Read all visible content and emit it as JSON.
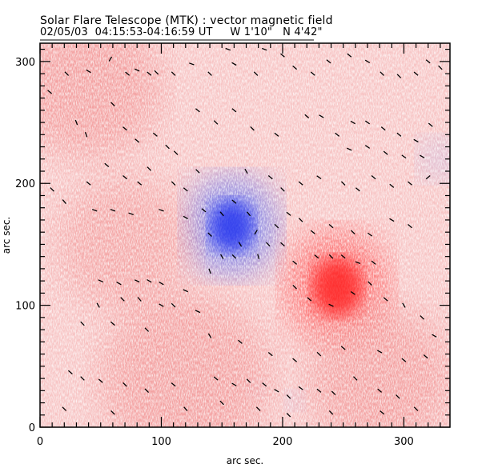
{
  "header": {
    "title": "Solar Flare Telescope (MTK) : vector magnetic field",
    "subtitle": "02/05/03  04:15:53-04:16:59 UT     W 1'10\"   N 4'42\""
  },
  "chart_data": {
    "type": "heatmap",
    "title": "Solar Flare Telescope (MTK) : vector magnetic field",
    "subtitle": "02/05/03  04:15:53-04:16:59 UT     W 1'10\"   N 4'42\"",
    "date": "02/05/03",
    "time_range": "04:15:53-04:16:59 UT",
    "position": "W 1'10\"   N 4'42\"",
    "xlabel": "arc sec.",
    "ylabel": "arc sec.",
    "xlim": [
      0,
      338
    ],
    "ylim": [
      0,
      315
    ],
    "x_ticks": [
      0,
      100,
      200,
      300
    ],
    "y_ticks": [
      0,
      100,
      200,
      300
    ],
    "x_tick_labels": [
      "0",
      "100",
      "200",
      "300"
    ],
    "y_tick_labels": [
      "0",
      "100",
      "200",
      "300"
    ],
    "minor_tick_step": 10,
    "grid": false,
    "colors": {
      "positive": "#ff2020",
      "negative": "#2030ee",
      "background_positive": "#f4a0a0",
      "vectors": "#000000",
      "axes": "#000000"
    },
    "longitudinal_field": {
      "description": "red = positive polarity, blue = negative polarity",
      "features": [
        {
          "name": "negative-sunspot",
          "polarity": "negative",
          "x": 158,
          "y": 165,
          "radius": 30,
          "strength": 1.0
        },
        {
          "name": "positive-sunspot",
          "polarity": "positive",
          "x": 245,
          "y": 115,
          "radius": 34,
          "strength": 1.0
        },
        {
          "name": "negative-pore-1",
          "polarity": "negative",
          "x": 210,
          "y": 22,
          "radius": 8,
          "strength": 0.35
        },
        {
          "name": "negative-pore-2",
          "polarity": "negative",
          "x": 178,
          "y": 32,
          "radius": 7,
          "strength": 0.25
        },
        {
          "name": "negative-plage-east",
          "polarity": "negative",
          "x": 330,
          "y": 220,
          "radius": 18,
          "strength": 0.2
        },
        {
          "name": "positive-plage-nw",
          "polarity": "positive",
          "x": 40,
          "y": 280,
          "radius": 60,
          "strength": 0.3
        },
        {
          "name": "positive-plage-sw",
          "polarity": "positive",
          "x": 120,
          "y": 40,
          "radius": 70,
          "strength": 0.3
        },
        {
          "name": "positive-plage-w",
          "polarity": "positive",
          "x": 70,
          "y": 150,
          "radius": 55,
          "strength": 0.25
        },
        {
          "name": "positive-plage-se",
          "polarity": "positive",
          "x": 280,
          "y": 40,
          "radius": 60,
          "strength": 0.3
        }
      ]
    },
    "transverse_vectors": {
      "description": "short line segments, angle in degrees from +x axis (counter-clockwise)",
      "items": [
        {
          "x": 8,
          "y": 275,
          "angle": -40
        },
        {
          "x": 22,
          "y": 290,
          "angle": -45
        },
        {
          "x": 40,
          "y": 292,
          "angle": -30
        },
        {
          "x": 58,
          "y": 302,
          "angle": 60
        },
        {
          "x": 72,
          "y": 290,
          "angle": -40
        },
        {
          "x": 80,
          "y": 293,
          "angle": -25
        },
        {
          "x": 90,
          "y": 290,
          "angle": -40
        },
        {
          "x": 96,
          "y": 291,
          "angle": -45
        },
        {
          "x": 110,
          "y": 290,
          "angle": -45
        },
        {
          "x": 125,
          "y": 298,
          "angle": -20
        },
        {
          "x": 140,
          "y": 290,
          "angle": -45
        },
        {
          "x": 160,
          "y": 298,
          "angle": -30
        },
        {
          "x": 155,
          "y": 310,
          "angle": -20
        },
        {
          "x": 178,
          "y": 290,
          "angle": -45
        },
        {
          "x": 185,
          "y": 310,
          "angle": -20
        },
        {
          "x": 200,
          "y": 305,
          "angle": -40
        },
        {
          "x": 210,
          "y": 295,
          "angle": -40
        },
        {
          "x": 225,
          "y": 290,
          "angle": -40
        },
        {
          "x": 238,
          "y": 300,
          "angle": -40
        },
        {
          "x": 255,
          "y": 305,
          "angle": -40
        },
        {
          "x": 270,
          "y": 300,
          "angle": -30
        },
        {
          "x": 282,
          "y": 290,
          "angle": -45
        },
        {
          "x": 296,
          "y": 288,
          "angle": -45
        },
        {
          "x": 310,
          "y": 290,
          "angle": -40
        },
        {
          "x": 320,
          "y": 300,
          "angle": -40
        },
        {
          "x": 330,
          "y": 295,
          "angle": -45
        },
        {
          "x": 30,
          "y": 250,
          "angle": -70
        },
        {
          "x": 38,
          "y": 240,
          "angle": -70
        },
        {
          "x": 60,
          "y": 265,
          "angle": -45
        },
        {
          "x": 70,
          "y": 245,
          "angle": -40
        },
        {
          "x": 80,
          "y": 235,
          "angle": -40
        },
        {
          "x": 95,
          "y": 240,
          "angle": -40
        },
        {
          "x": 105,
          "y": 230,
          "angle": -45
        },
        {
          "x": 112,
          "y": 225,
          "angle": -45
        },
        {
          "x": 130,
          "y": 260,
          "angle": -40
        },
        {
          "x": 145,
          "y": 250,
          "angle": -45
        },
        {
          "x": 160,
          "y": 260,
          "angle": -40
        },
        {
          "x": 175,
          "y": 245,
          "angle": -45
        },
        {
          "x": 195,
          "y": 240,
          "angle": -40
        },
        {
          "x": 220,
          "y": 255,
          "angle": -40
        },
        {
          "x": 232,
          "y": 255,
          "angle": -30
        },
        {
          "x": 245,
          "y": 240,
          "angle": -40
        },
        {
          "x": 258,
          "y": 250,
          "angle": -30
        },
        {
          "x": 270,
          "y": 250,
          "angle": -35
        },
        {
          "x": 283,
          "y": 245,
          "angle": -40
        },
        {
          "x": 296,
          "y": 240,
          "angle": -40
        },
        {
          "x": 310,
          "y": 235,
          "angle": -30
        },
        {
          "x": 322,
          "y": 248,
          "angle": -40
        },
        {
          "x": 300,
          "y": 222,
          "angle": -35
        },
        {
          "x": 315,
          "y": 222,
          "angle": -30
        },
        {
          "x": 285,
          "y": 225,
          "angle": -40
        },
        {
          "x": 270,
          "y": 230,
          "angle": -35
        },
        {
          "x": 255,
          "y": 228,
          "angle": -25
        },
        {
          "x": 10,
          "y": 195,
          "angle": -45
        },
        {
          "x": 20,
          "y": 185,
          "angle": -50
        },
        {
          "x": 40,
          "y": 200,
          "angle": -40
        },
        {
          "x": 55,
          "y": 215,
          "angle": -40
        },
        {
          "x": 70,
          "y": 205,
          "angle": -40
        },
        {
          "x": 82,
          "y": 200,
          "angle": -40
        },
        {
          "x": 90,
          "y": 212,
          "angle": -45
        },
        {
          "x": 110,
          "y": 200,
          "angle": -45
        },
        {
          "x": 120,
          "y": 195,
          "angle": -40
        },
        {
          "x": 130,
          "y": 210,
          "angle": -45
        },
        {
          "x": 170,
          "y": 210,
          "angle": -60
        },
        {
          "x": 190,
          "y": 205,
          "angle": -40
        },
        {
          "x": 200,
          "y": 195,
          "angle": -45
        },
        {
          "x": 215,
          "y": 200,
          "angle": -40
        },
        {
          "x": 230,
          "y": 205,
          "angle": -35
        },
        {
          "x": 250,
          "y": 200,
          "angle": -45
        },
        {
          "x": 262,
          "y": 195,
          "angle": -40
        },
        {
          "x": 275,
          "y": 205,
          "angle": -40
        },
        {
          "x": 290,
          "y": 198,
          "angle": -40
        },
        {
          "x": 305,
          "y": 200,
          "angle": -40
        },
        {
          "x": 320,
          "y": 205,
          "angle": 40
        },
        {
          "x": 45,
          "y": 178,
          "angle": -20
        },
        {
          "x": 60,
          "y": 178,
          "angle": -20
        },
        {
          "x": 75,
          "y": 175,
          "angle": -20
        },
        {
          "x": 100,
          "y": 178,
          "angle": -20
        },
        {
          "x": 120,
          "y": 172,
          "angle": -30
        },
        {
          "x": 135,
          "y": 178,
          "angle": -40
        },
        {
          "x": 140,
          "y": 158,
          "angle": -45
        },
        {
          "x": 150,
          "y": 175,
          "angle": -50
        },
        {
          "x": 160,
          "y": 185,
          "angle": -40
        },
        {
          "x": 172,
          "y": 175,
          "angle": -50
        },
        {
          "x": 178,
          "y": 160,
          "angle": 60
        },
        {
          "x": 165,
          "y": 150,
          "angle": -60
        },
        {
          "x": 150,
          "y": 140,
          "angle": -60
        },
        {
          "x": 180,
          "y": 140,
          "angle": -75
        },
        {
          "x": 188,
          "y": 150,
          "angle": -45
        },
        {
          "x": 195,
          "y": 165,
          "angle": -45
        },
        {
          "x": 205,
          "y": 175,
          "angle": -40
        },
        {
          "x": 215,
          "y": 170,
          "angle": -45
        },
        {
          "x": 225,
          "y": 160,
          "angle": -40
        },
        {
          "x": 240,
          "y": 165,
          "angle": -40
        },
        {
          "x": 258,
          "y": 160,
          "angle": -45
        },
        {
          "x": 272,
          "y": 158,
          "angle": -35
        },
        {
          "x": 290,
          "y": 170,
          "angle": -30
        },
        {
          "x": 305,
          "y": 165,
          "angle": -40
        },
        {
          "x": 140,
          "y": 128,
          "angle": -70
        },
        {
          "x": 160,
          "y": 140,
          "angle": -45
        },
        {
          "x": 200,
          "y": 150,
          "angle": -40
        },
        {
          "x": 210,
          "y": 135,
          "angle": -40
        },
        {
          "x": 228,
          "y": 140,
          "angle": -40
        },
        {
          "x": 240,
          "y": 140,
          "angle": -45
        },
        {
          "x": 250,
          "y": 140,
          "angle": -40
        },
        {
          "x": 262,
          "y": 135,
          "angle": -20
        },
        {
          "x": 275,
          "y": 135,
          "angle": -40
        },
        {
          "x": 50,
          "y": 120,
          "angle": -25
        },
        {
          "x": 65,
          "y": 118,
          "angle": -30
        },
        {
          "x": 80,
          "y": 120,
          "angle": -25
        },
        {
          "x": 90,
          "y": 120,
          "angle": -30
        },
        {
          "x": 100,
          "y": 118,
          "angle": -30
        },
        {
          "x": 120,
          "y": 112,
          "angle": -25
        },
        {
          "x": 48,
          "y": 100,
          "angle": -60
        },
        {
          "x": 68,
          "y": 105,
          "angle": -45
        },
        {
          "x": 82,
          "y": 105,
          "angle": -50
        },
        {
          "x": 100,
          "y": 100,
          "angle": -30
        },
        {
          "x": 110,
          "y": 100,
          "angle": -45
        },
        {
          "x": 130,
          "y": 95,
          "angle": -25
        },
        {
          "x": 210,
          "y": 115,
          "angle": -45
        },
        {
          "x": 222,
          "y": 105,
          "angle": -40
        },
        {
          "x": 240,
          "y": 100,
          "angle": -25
        },
        {
          "x": 258,
          "y": 110,
          "angle": -35
        },
        {
          "x": 272,
          "y": 118,
          "angle": -45
        },
        {
          "x": 285,
          "y": 105,
          "angle": -40
        },
        {
          "x": 300,
          "y": 100,
          "angle": -60
        },
        {
          "x": 315,
          "y": 90,
          "angle": -45
        },
        {
          "x": 325,
          "y": 75,
          "angle": -30
        },
        {
          "x": 35,
          "y": 85,
          "angle": -45
        },
        {
          "x": 60,
          "y": 85,
          "angle": -40
        },
        {
          "x": 88,
          "y": 80,
          "angle": -45
        },
        {
          "x": 140,
          "y": 75,
          "angle": -60
        },
        {
          "x": 165,
          "y": 70,
          "angle": -40
        },
        {
          "x": 190,
          "y": 60,
          "angle": -40
        },
        {
          "x": 210,
          "y": 55,
          "angle": -40
        },
        {
          "x": 230,
          "y": 60,
          "angle": -45
        },
        {
          "x": 250,
          "y": 65,
          "angle": -40
        },
        {
          "x": 280,
          "y": 62,
          "angle": -30
        },
        {
          "x": 300,
          "y": 55,
          "angle": -40
        },
        {
          "x": 318,
          "y": 58,
          "angle": -40
        },
        {
          "x": 25,
          "y": 45,
          "angle": -40
        },
        {
          "x": 35,
          "y": 40,
          "angle": -45
        },
        {
          "x": 50,
          "y": 38,
          "angle": -40
        },
        {
          "x": 70,
          "y": 35,
          "angle": -45
        },
        {
          "x": 88,
          "y": 30,
          "angle": -45
        },
        {
          "x": 110,
          "y": 35,
          "angle": -40
        },
        {
          "x": 145,
          "y": 40,
          "angle": -40
        },
        {
          "x": 160,
          "y": 35,
          "angle": -30
        },
        {
          "x": 172,
          "y": 38,
          "angle": -45
        },
        {
          "x": 185,
          "y": 35,
          "angle": -40
        },
        {
          "x": 195,
          "y": 30,
          "angle": -30
        },
        {
          "x": 205,
          "y": 25,
          "angle": -45
        },
        {
          "x": 215,
          "y": 32,
          "angle": -35
        },
        {
          "x": 230,
          "y": 30,
          "angle": -40
        },
        {
          "x": 242,
          "y": 28,
          "angle": -45
        },
        {
          "x": 260,
          "y": 40,
          "angle": -45
        },
        {
          "x": 280,
          "y": 30,
          "angle": -40
        },
        {
          "x": 295,
          "y": 25,
          "angle": -45
        },
        {
          "x": 20,
          "y": 15,
          "angle": -45
        },
        {
          "x": 60,
          "y": 12,
          "angle": -45
        },
        {
          "x": 120,
          "y": 15,
          "angle": -50
        },
        {
          "x": 150,
          "y": 20,
          "angle": -45
        },
        {
          "x": 180,
          "y": 15,
          "angle": -45
        },
        {
          "x": 205,
          "y": 10,
          "angle": -45
        },
        {
          "x": 240,
          "y": 12,
          "angle": -45
        },
        {
          "x": 282,
          "y": 12,
          "angle": -40
        },
        {
          "x": 310,
          "y": 15,
          "angle": -45
        }
      ]
    }
  }
}
